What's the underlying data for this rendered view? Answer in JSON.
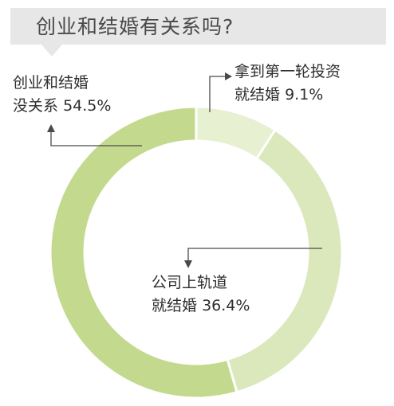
{
  "title": "创业和结婚有关系吗?",
  "colors": {
    "title_bg": "#e7e7e7",
    "slice_large": "#c3da8e",
    "slice_mid": "#dbe8bc",
    "slice_small": "#e7f0d1",
    "leader_line": "#4a4a4a"
  },
  "chart_data": {
    "type": "pie",
    "donut": true,
    "title": "创业和结婚有关系吗?",
    "start_angle_deg": 0,
    "direction": "clockwise",
    "slices": [
      {
        "label_line1": "拿到第一轮投资",
        "label_line2": "就结婚",
        "value": 9.1,
        "value_text": "9.1%"
      },
      {
        "label_line1": "公司上轨道",
        "label_line2": "就结婚",
        "value": 36.4,
        "value_text": "36.4%"
      },
      {
        "label_line1": "创业和结婚",
        "label_line2": "没关系",
        "value": 54.5,
        "value_text": "54.5%"
      }
    ]
  }
}
